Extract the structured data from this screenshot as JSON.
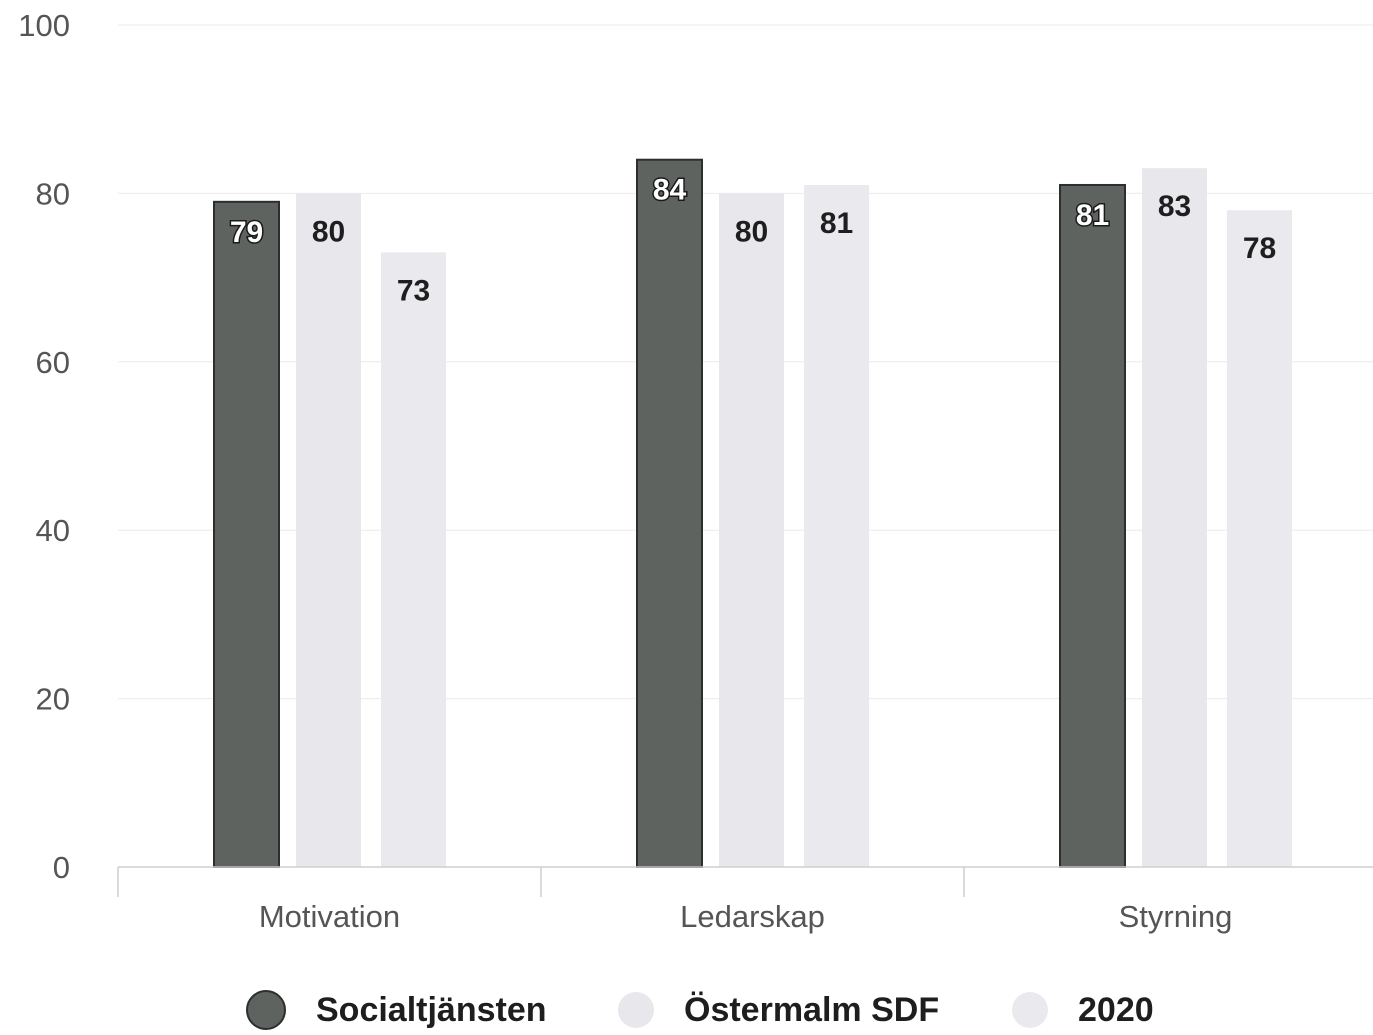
{
  "chart_data": {
    "type": "bar",
    "categories": [
      "Motivation",
      "Ledarskap",
      "Styrning"
    ],
    "series": [
      {
        "name": "Socialtjänsten",
        "values": [
          79,
          84,
          81
        ],
        "color": "#5f6360",
        "label_color": "#ffffff"
      },
      {
        "name": "Östermalm SDF",
        "values": [
          80,
          80,
          83
        ],
        "color": "#e8e8ec",
        "label_color": "#1e1e1e"
      },
      {
        "name": "2020",
        "values": [
          73,
          81,
          78
        ],
        "color": "#eaeaee",
        "label_color": "#1e1e1e"
      }
    ],
    "ylim": [
      0,
      100
    ],
    "yticks": [
      0,
      20,
      40,
      60,
      80,
      100
    ],
    "xlabel": "",
    "ylabel": "",
    "grid": true,
    "legend_position": "bottom",
    "show_data_labels": true
  }
}
